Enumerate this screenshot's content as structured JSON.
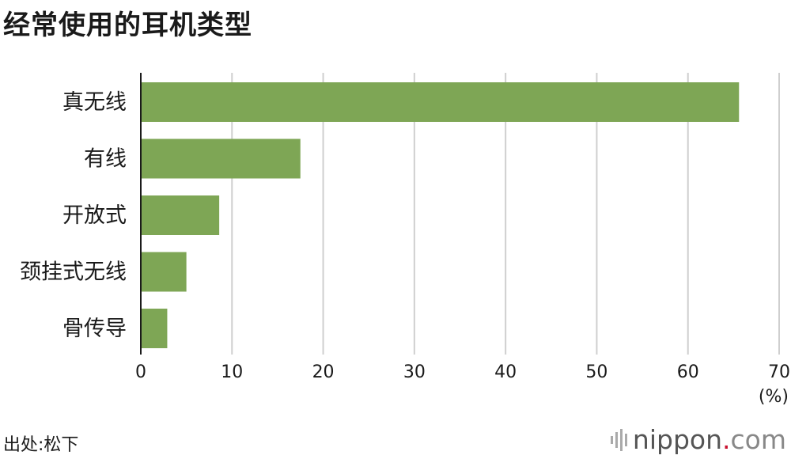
{
  "title": "经常使用的耳机类型",
  "source": "出处:松下",
  "logo": {
    "name": "nippon",
    "dot": ".",
    "tld": "com"
  },
  "chart_data": {
    "type": "bar",
    "orientation": "horizontal",
    "categories": [
      "真无线",
      "有线",
      "开放式",
      "颈挂式无线",
      "骨传导"
    ],
    "values": [
      65.6,
      17.5,
      8.6,
      5.0,
      2.9
    ],
    "xlim": [
      0,
      70
    ],
    "xticks": [
      0,
      10,
      20,
      30,
      40,
      50,
      60,
      70
    ],
    "unit": "(%)",
    "grid": true,
    "bar_color": "#7ea655"
  }
}
